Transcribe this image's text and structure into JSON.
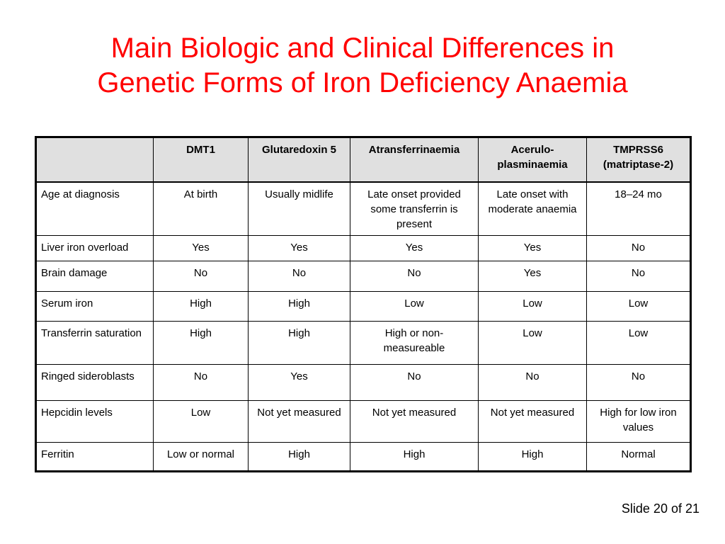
{
  "title": {
    "line1": "Main Biologic and Clinical Differences in",
    "line2": "Genetic Forms of Iron Deficiency Anaemia"
  },
  "table": {
    "columns": [
      "",
      "DMT1",
      "Glutaredoxin 5",
      "Atransferrinaemia",
      "Acerulo-plasminaemia",
      "TMPRSS6 (matriptase-2)"
    ],
    "rows": [
      {
        "label": "Age at diagnosis",
        "cells": [
          "At birth",
          "Usually midlife",
          "Late onset provided some  transferrin is present",
          "Late onset with moderate anaemia",
          "18–24 mo"
        ]
      },
      {
        "label": "Liver iron overload",
        "cells": [
          "Yes",
          "Yes",
          "Yes",
          "Yes",
          "No"
        ]
      },
      {
        "label": "Brain damage",
        "cells": [
          "No",
          "No",
          "No",
          "Yes",
          "No"
        ]
      },
      {
        "label": "Serum iron",
        "cells": [
          "High",
          "High",
          "Low",
          "Low",
          "Low"
        ]
      },
      {
        "label": "Transferrin saturation",
        "cells": [
          "High",
          "High",
          "High or non-measureable",
          "Low",
          "Low"
        ]
      },
      {
        "label": "Ringed sideroblasts",
        "cells": [
          "No",
          "Yes",
          "No",
          "No",
          "No"
        ]
      },
      {
        "label": "Hepcidin levels",
        "cells": [
          "Low",
          "Not yet measured",
          "Not yet measured",
          "Not yet measured",
          "High for low iron values"
        ]
      },
      {
        "label": "Ferritin",
        "cells": [
          "Low or normal",
          "High",
          "High",
          "High",
          "Normal"
        ]
      }
    ]
  },
  "footer": {
    "slide_number": "Slide 20 of 21"
  },
  "colors": {
    "title": "#ff0000",
    "header_background": "#e0e0e0"
  }
}
